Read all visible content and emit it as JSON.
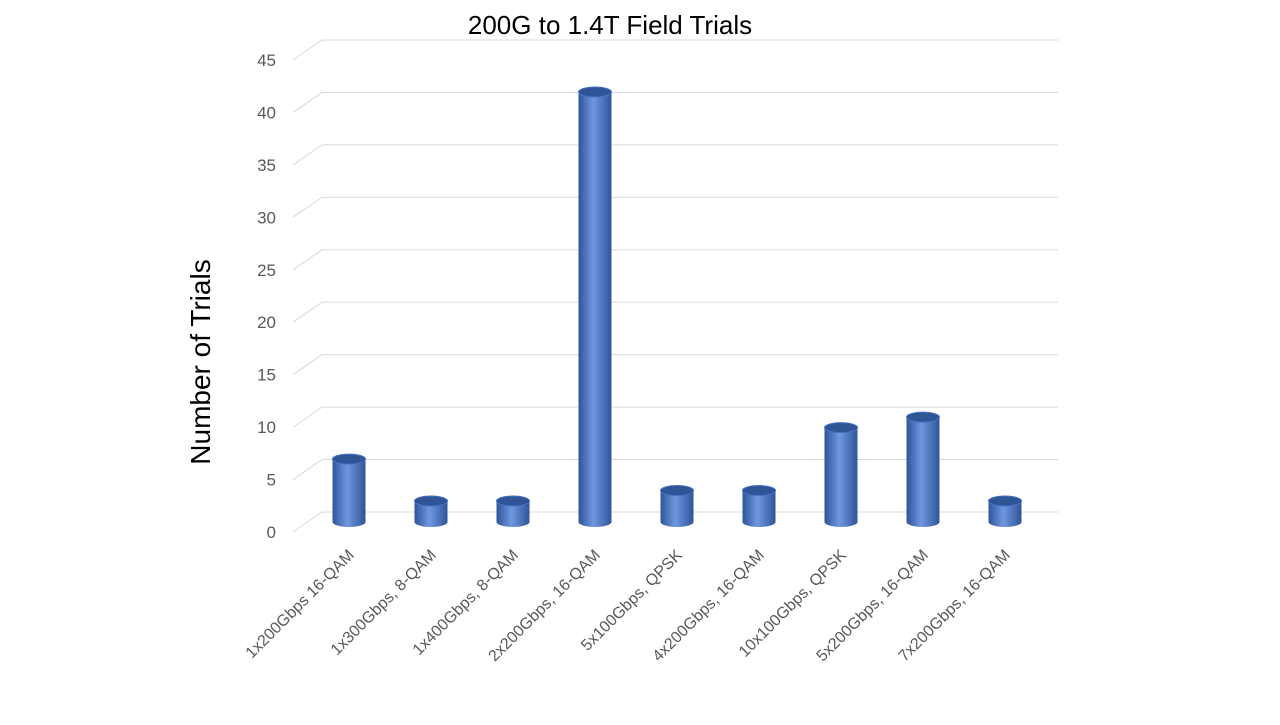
{
  "chart_data": {
    "type": "bar",
    "title": "200G to 1.4T Field Trials",
    "xlabel": "",
    "ylabel": "Number of Trials",
    "categories": [
      "1x200Gbps 16-QAM",
      "1x300Gbps, 8-QAM",
      "1x400Gbps, 8-QAM",
      "2x200Gbps, 16-QAM",
      "5x100Gbps, QPSK",
      "4x200Gbps, 16-QAM",
      "10x100Gbps, QPSK",
      "5x200Gbps, 16-QAM",
      "7x200Gbps, 16-QAM"
    ],
    "values": [
      6,
      2,
      2,
      41,
      3,
      3,
      9,
      10,
      2
    ],
    "ylim": [
      0,
      45
    ],
    "yticks": [
      "0",
      "5",
      "10",
      "15",
      "20",
      "25",
      "30",
      "35",
      "40",
      "45"
    ],
    "grid": true,
    "legend": "none",
    "colors": {
      "bar": "#4472c4",
      "bar_dark": "#2f5597",
      "bar_light": "#6f97e0",
      "grid": "#d9d9d9"
    }
  }
}
